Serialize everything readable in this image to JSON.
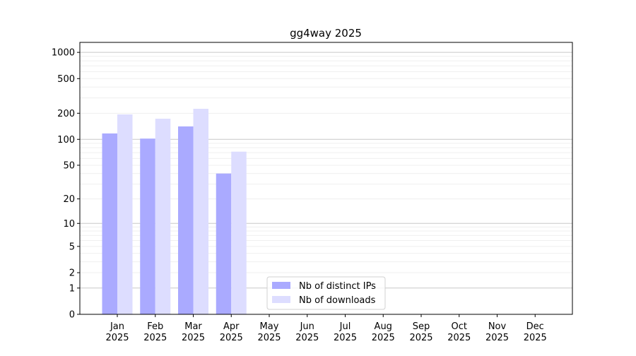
{
  "chart_data": {
    "type": "bar",
    "title": "gg4way 2025",
    "xlabel": "",
    "ylabel": "",
    "yscale": "log(1+y)",
    "ylim": [
      0,
      1350
    ],
    "yticks": [
      0,
      1,
      2,
      5,
      10,
      20,
      50,
      100,
      200,
      500,
      1000
    ],
    "grid": true,
    "legend_position": "bottom-center",
    "categories": [
      "Jan\n2025",
      "Feb\n2025",
      "Mar\n2025",
      "Apr\n2025",
      "May\n2025",
      "Jun\n2025",
      "Jul\n2025",
      "Aug\n2025",
      "Sep\n2025",
      "Oct\n2025",
      "Nov\n2025",
      "Dec\n2025"
    ],
    "series": [
      {
        "name": "Nb of distinct IPs",
        "color": "#aaaaff",
        "values": [
          117,
          102,
          141,
          40,
          0,
          0,
          0,
          0,
          0,
          0,
          0,
          0
        ]
      },
      {
        "name": "Nb of downloads",
        "color": "#ddddff",
        "values": [
          194,
          173,
          225,
          72,
          0,
          0,
          0,
          0,
          0,
          0,
          0,
          0
        ]
      }
    ]
  }
}
